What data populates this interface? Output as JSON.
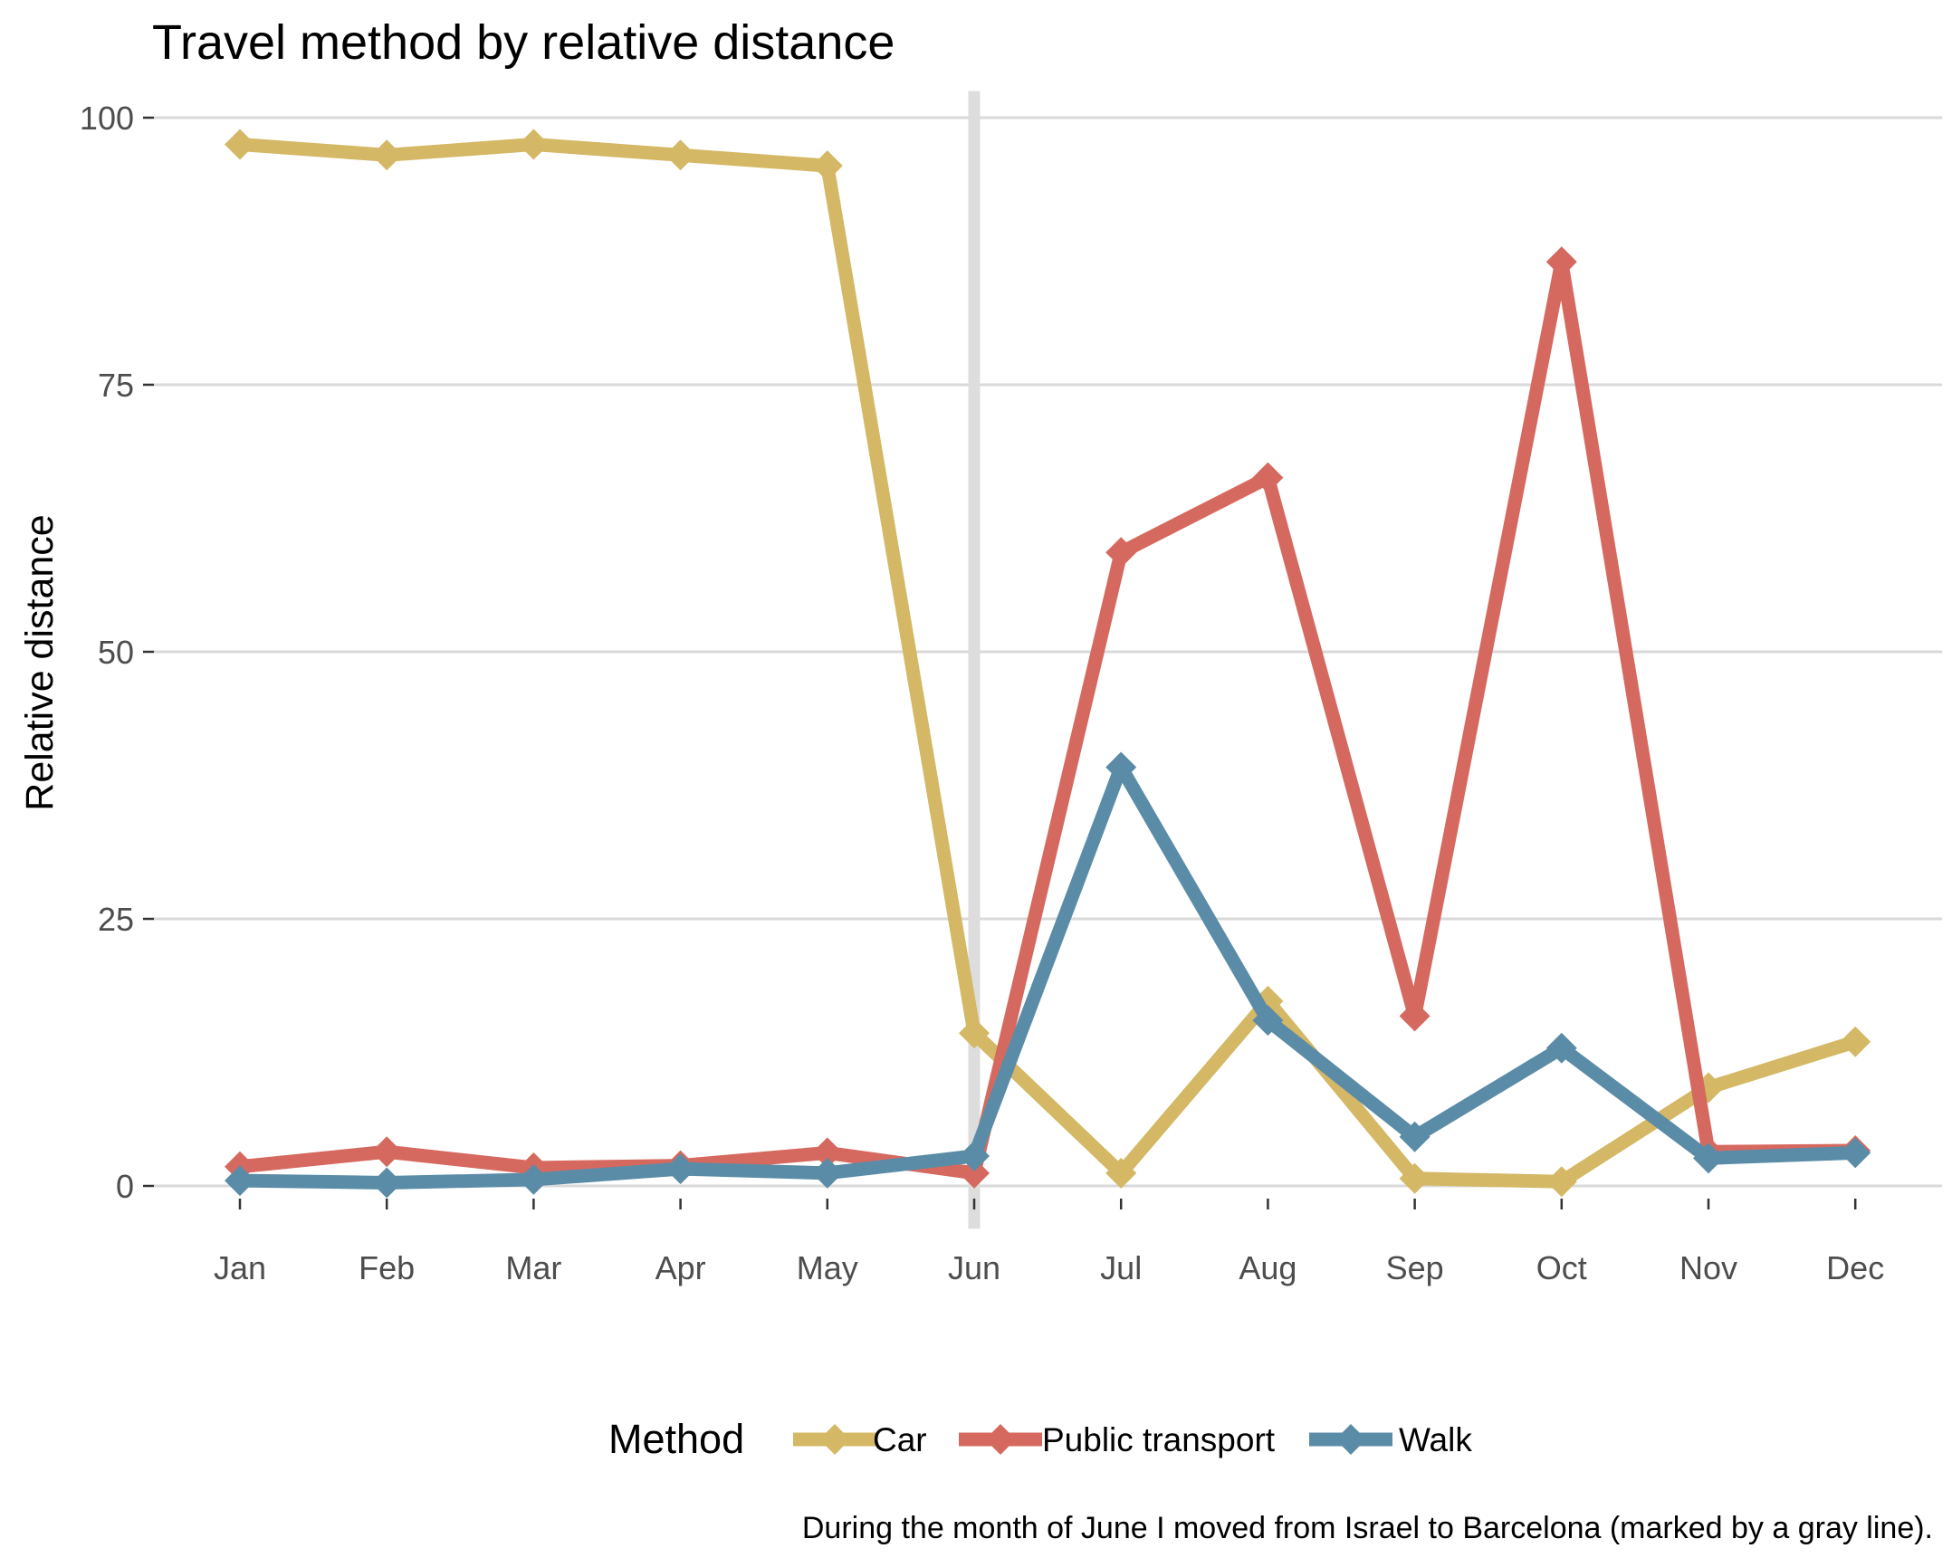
{
  "chart_data": {
    "type": "line",
    "title": "Travel method by relative distance",
    "xlabel": "",
    "ylabel": "Relative distance",
    "categories": [
      "Jan",
      "Feb",
      "Mar",
      "Apr",
      "May",
      "Jun",
      "Jul",
      "Aug",
      "Sep",
      "Oct",
      "Nov",
      "Dec"
    ],
    "ylim": [
      -4,
      102.5
    ],
    "yticks": [
      0,
      25,
      50,
      75,
      100
    ],
    "grid": true,
    "legend": {
      "title": "Method",
      "position": "bottom"
    },
    "marker_line": {
      "category": "Jun",
      "color": "#dddddd"
    },
    "caption": "During the month of June I moved from Israel to Barcelona (marked by a gray line).",
    "series": [
      {
        "name": "Car",
        "color": "#d4b865",
        "values": [
          97.5,
          96.5,
          97.5,
          96.5,
          95.5,
          14.3,
          1.2,
          17.3,
          0.7,
          0.4,
          9.2,
          13.5
        ]
      },
      {
        "name": "Public transport",
        "color": "#d6695f",
        "values": [
          1.8,
          3.2,
          1.7,
          1.9,
          3.1,
          1.2,
          59.3,
          66.3,
          15.9,
          86.5,
          3.2,
          3.3
        ]
      },
      {
        "name": "Walk",
        "color": "#5b8ca7",
        "values": [
          0.5,
          0.3,
          0.6,
          1.6,
          1.2,
          2.8,
          39.2,
          15.5,
          4.6,
          12.9,
          2.6,
          3.1
        ]
      }
    ]
  }
}
